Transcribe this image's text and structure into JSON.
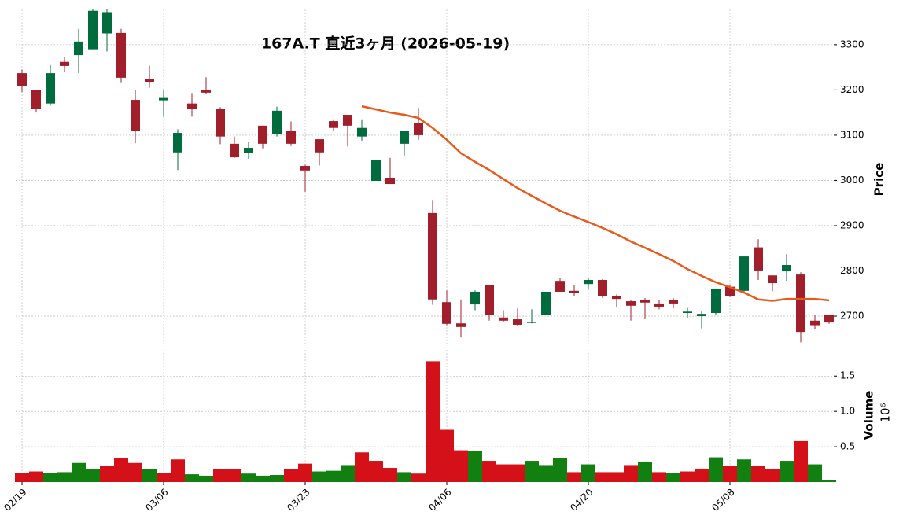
{
  "chart_data": [
    {
      "type": "candlestick",
      "title": "167A.T 直近3ヶ月 (2026-05-19)",
      "categories": [
        "02/19",
        null,
        null,
        null,
        null,
        null,
        null,
        null,
        null,
        null,
        "03/06",
        null,
        null,
        null,
        null,
        null,
        null,
        null,
        null,
        null,
        "03/23",
        null,
        null,
        null,
        null,
        null,
        null,
        null,
        null,
        null,
        "04/06",
        null,
        null,
        null,
        null,
        null,
        null,
        null,
        null,
        null,
        "04/20",
        null,
        null,
        null,
        null,
        null,
        null,
        null,
        null,
        null,
        "05/08",
        null,
        null,
        null,
        null,
        null,
        null,
        null
      ],
      "open": [
        3237,
        3199,
        3170,
        3262,
        3277,
        3290,
        3325,
        3326,
        3178,
        3224,
        3177,
        3062,
        3170,
        3200,
        3159,
        3081,
        3060,
        3121,
        3103,
        3110,
        3032,
        3091,
        3131,
        3145,
        3097,
        2999,
        3006,
        3081,
        3126,
        2928,
        2731,
        2684,
        2726,
        2768,
        2697,
        2693,
        2685,
        2703,
        2778,
        2756,
        2771,
        2780,
        2745,
        2733,
        2735,
        2728,
        2735,
        2707,
        2700,
        2707,
        2765,
        2756,
        2852,
        2790,
        2799,
        2792,
        2690,
        2703
      ],
      "high": [
        3245,
        3199,
        3255,
        3272,
        3335,
        3378,
        3378,
        3335,
        3200,
        3253,
        3200,
        3113,
        3193,
        3228,
        3162,
        3097,
        3085,
        3121,
        3163,
        3130,
        3035,
        3091,
        3135,
        3145,
        3135,
        3046,
        3050,
        3110,
        3160,
        2957,
        2757,
        2737,
        2757,
        2768,
        2713,
        2717,
        2715,
        2754,
        2785,
        2768,
        2785,
        2782,
        2748,
        2736,
        2740,
        2735,
        2740,
        2718,
        2710,
        2761,
        2768,
        2832,
        2870,
        2790,
        2837,
        2797,
        2703,
        2703
      ],
      "low": [
        3195,
        3150,
        3165,
        3240,
        3237,
        3290,
        3285,
        3217,
        3082,
        3205,
        3141,
        3023,
        3141,
        3192,
        3080,
        3050,
        3048,
        3071,
        3097,
        3076,
        2975,
        3033,
        3110,
        3075,
        3088,
        2999,
        2992,
        3055,
        3090,
        2725,
        2680,
        2653,
        2713,
        2690,
        2687,
        2678,
        2684,
        2703,
        2754,
        2745,
        2760,
        2740,
        2720,
        2690,
        2693,
        2715,
        2717,
        2695,
        2673,
        2703,
        2742,
        2752,
        2780,
        2755,
        2778,
        2642,
        2672,
        2683
      ],
      "close": [
        3208,
        3159,
        3237,
        3253,
        3307,
        3375,
        3372,
        3227,
        3110,
        3218,
        3184,
        3105,
        3158,
        3194,
        3097,
        3051,
        3072,
        3081,
        3154,
        3081,
        3022,
        3062,
        3116,
        3121,
        3116,
        3046,
        2992,
        3110,
        3100,
        2737,
        2683,
        2676,
        2754,
        2703,
        2690,
        2681,
        2687,
        2754,
        2754,
        2751,
        2780,
        2745,
        2738,
        2723,
        2730,
        2721,
        2728,
        2710,
        2705,
        2761,
        2744,
        2832,
        2801,
        2773,
        2813,
        2665,
        2680,
        2686
      ],
      "up_color": "#006b3c",
      "down_color": "#a01f2b",
      "ma": {
        "color": "#e8591a",
        "values": [
          null,
          null,
          null,
          null,
          null,
          null,
          null,
          null,
          null,
          null,
          null,
          null,
          null,
          null,
          null,
          null,
          null,
          null,
          null,
          null,
          null,
          null,
          null,
          null,
          3164,
          3157,
          3150,
          3145,
          3138,
          3116,
          3090,
          3060,
          3041,
          3023,
          3003,
          2983,
          2966,
          2949,
          2933,
          2920,
          2908,
          2895,
          2881,
          2865,
          2851,
          2837,
          2822,
          2804,
          2789,
          2775,
          2764,
          2752,
          2737,
          2734,
          2738,
          2738,
          2738,
          2735
        ]
      },
      "ylim": [
        2634,
        3378
      ],
      "yticks": [
        2700,
        2800,
        2900,
        3000,
        3100,
        3200,
        3300
      ],
      "ylabel": "Price",
      "grid": true
    },
    {
      "type": "bar",
      "ylabel": "Volume",
      "offset_label": "10⁶",
      "values": [
        0.13,
        0.15,
        0.13,
        0.14,
        0.27,
        0.18,
        0.23,
        0.34,
        0.27,
        0.18,
        0.13,
        0.32,
        0.11,
        0.09,
        0.18,
        0.18,
        0.12,
        0.09,
        0.1,
        0.18,
        0.26,
        0.15,
        0.16,
        0.24,
        0.42,
        0.3,
        0.2,
        0.14,
        0.12,
        1.71,
        0.74,
        0.45,
        0.44,
        0.3,
        0.25,
        0.25,
        0.3,
        0.24,
        0.34,
        0.14,
        0.25,
        0.14,
        0.14,
        0.24,
        0.29,
        0.14,
        0.13,
        0.15,
        0.19,
        0.35,
        0.23,
        0.32,
        0.23,
        0.18,
        0.3,
        0.58,
        0.25,
        0.03
      ],
      "up_color": "#118011",
      "down_color": "#d41019",
      "ylim": [
        0,
        1.87
      ],
      "yticks": [
        0.5,
        {
          "value": 1,
          "label": "1.0"
        },
        1.5
      ],
      "grid": true
    }
  ]
}
